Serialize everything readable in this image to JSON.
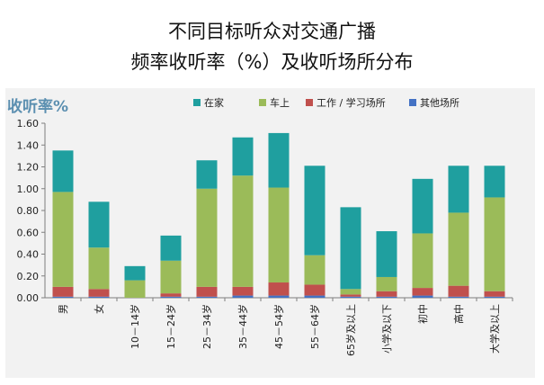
{
  "title": {
    "line1": "不同目标听众对交通广播",
    "line2": "频率收听率（%）及收听场所分布"
  },
  "chart_data": {
    "type": "bar",
    "stacked": true,
    "ylabel": "收听率%",
    "ylim": [
      0,
      1.6
    ],
    "yticks": [
      "0.00",
      "0.20",
      "0.40",
      "0.60",
      "0.80",
      "1.00",
      "1.20",
      "1.40",
      "1.60"
    ],
    "grid": false,
    "legend_position": "top",
    "categories": [
      "男",
      "女",
      "10－14岁",
      "15－24岁",
      "25－34岁",
      "35－44岁",
      "45－54岁",
      "55－64岁",
      "65岁及以上",
      "小学及以下",
      "初中",
      "高中",
      "大学及以上"
    ],
    "series": [
      {
        "name": "其他场所",
        "color": "#4472c4",
        "values": [
          0.01,
          0.01,
          0.0,
          0.01,
          0.01,
          0.02,
          0.02,
          0.02,
          0.01,
          0.01,
          0.02,
          0.01,
          0.01
        ]
      },
      {
        "name": "工作 / 学习场所",
        "color": "#c0504d",
        "values": [
          0.09,
          0.07,
          0.0,
          0.03,
          0.09,
          0.08,
          0.12,
          0.1,
          0.02,
          0.05,
          0.07,
          0.1,
          0.05
        ]
      },
      {
        "name": "车上",
        "color": "#9bbb59",
        "values": [
          0.87,
          0.38,
          0.16,
          0.3,
          0.9,
          1.02,
          0.87,
          0.27,
          0.05,
          0.13,
          0.5,
          0.67,
          0.86
        ]
      },
      {
        "name": "在家",
        "color": "#1f9f9f",
        "values": [
          0.38,
          0.42,
          0.13,
          0.23,
          0.26,
          0.35,
          0.5,
          0.82,
          0.75,
          0.42,
          0.5,
          0.43,
          0.29
        ]
      }
    ],
    "legend_order": [
      "在家",
      "车上",
      "工作 / 学习场所",
      "其他场所"
    ]
  }
}
